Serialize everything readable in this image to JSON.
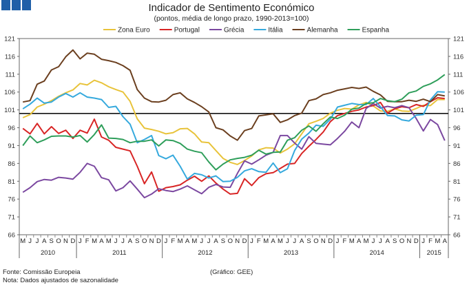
{
  "header_colors": {
    "box": "#1f5fa8"
  },
  "chart_data": {
    "type": "line",
    "title": "Indicador de Sentimento Económico",
    "subtitle": "(pontos, média de longo prazo, 1990-2013=100)",
    "ylim": [
      66,
      121
    ],
    "yticks": [
      66,
      71,
      76,
      81,
      86,
      91,
      96,
      101,
      106,
      111,
      116,
      121
    ],
    "reference_line": 100,
    "month_labels": [
      "M",
      "J",
      "J",
      "A",
      "S",
      "O",
      "N",
      "D",
      "J",
      "F",
      "M",
      "A",
      "M",
      "J",
      "J",
      "A",
      "S",
      "O",
      "N",
      "D",
      "J",
      "F",
      "M",
      "A",
      "M",
      "J",
      "J",
      "A",
      "S",
      "O",
      "N",
      "D",
      "J",
      "F",
      "M",
      "A",
      "M",
      "J",
      "J",
      "A",
      "S",
      "O",
      "N",
      "D",
      "J",
      "F",
      "M",
      "A",
      "M",
      "J",
      "J",
      "A",
      "S",
      "O",
      "N",
      "D",
      "J",
      "F",
      "M",
      "A"
    ],
    "years": [
      {
        "label": "2010",
        "start": 0,
        "end": 8
      },
      {
        "label": "2011",
        "start": 8,
        "end": 20
      },
      {
        "label": "2012",
        "start": 20,
        "end": 32
      },
      {
        "label": "2013",
        "start": 32,
        "end": 44
      },
      {
        "label": "2014",
        "start": 44,
        "end": 56
      },
      {
        "label": "2015",
        "start": 56,
        "end": 60
      }
    ],
    "series": [
      {
        "name": "Zona Euro",
        "color": "#e8c33a",
        "values": [
          98.8,
          99.7,
          101.8,
          102.6,
          103.6,
          104.8,
          105.8,
          106.6,
          108.4,
          108.0,
          109.3,
          108.6,
          107.5,
          106.7,
          106.0,
          103.4,
          98.5,
          95.9,
          95.5,
          95.0,
          94.3,
          94.6,
          95.7,
          95.8,
          94.3,
          92.0,
          91.8,
          89.6,
          87.4,
          86.3,
          85.7,
          86.8,
          88.1,
          89.8,
          90.4,
          90.3,
          88.9,
          90.0,
          91.5,
          94.3,
          97.1,
          97.8,
          98.6,
          100.1,
          100.9,
          101.4,
          101.2,
          102.4,
          103.1,
          102.1,
          100.7,
          100.6,
          101.3,
          100.7,
          100.6,
          101.4,
          102.3,
          102.2,
          103.9,
          103.9
        ]
      },
      {
        "name": "Portugal",
        "color": "#d82525",
        "values": [
          95.8,
          94.3,
          97.2,
          94.3,
          96.3,
          94.4,
          95.3,
          93.0,
          95.3,
          94.5,
          98.4,
          93.4,
          92.5,
          90.5,
          90.0,
          89.5,
          85.2,
          80.3,
          83.6,
          78.2,
          79.2,
          79.5,
          80.0,
          81.3,
          82.4,
          81.0,
          82.5,
          80.5,
          78.8,
          77.4,
          77.6,
          81.7,
          79.8,
          82.0,
          83.1,
          83.4,
          84.6,
          85.8,
          86.0,
          88.8,
          90.8,
          92.7,
          94.8,
          97.7,
          99.4,
          100.0,
          100.6,
          101.0,
          101.8,
          102.2,
          103.1,
          100.1,
          101.3,
          101.9,
          101.6,
          102.5,
          102.0,
          103.3,
          104.4,
          104.2
        ]
      },
      {
        "name": "Grécia",
        "color": "#7b48a0",
        "values": [
          77.9,
          79.2,
          80.9,
          81.5,
          81.3,
          82.1,
          81.9,
          81.6,
          83.5,
          86.0,
          85.2,
          82.0,
          81.4,
          78.3,
          79.2,
          81.1,
          78.8,
          76.4,
          77.4,
          78.9,
          78.4,
          78.1,
          78.8,
          79.7,
          78.6,
          77.5,
          79.3,
          80.1,
          79.4,
          79.3,
          83.2,
          86.7,
          85.8,
          87.0,
          88.3,
          89.1,
          93.8,
          93.8,
          91.7,
          90.0,
          93.5,
          91.6,
          91.4,
          91.2,
          93.0,
          95.0,
          97.6,
          96.0,
          101.4,
          102.8,
          101.5,
          102.0,
          101.6,
          102.2,
          101.6,
          98.6,
          95.1,
          98.3,
          96.9,
          92.4
        ]
      },
      {
        "name": "Itália",
        "color": "#35a9dd",
        "values": [
          101.3,
          102.6,
          104.3,
          102.9,
          103.2,
          104.6,
          105.6,
          104.6,
          105.8,
          104.6,
          104.3,
          103.9,
          101.7,
          102.0,
          99.1,
          97.0,
          91.8,
          92.7,
          93.8,
          88.2,
          87.3,
          88.3,
          85.2,
          81.6,
          83.2,
          82.8,
          81.9,
          82.5,
          80.9,
          81.0,
          82.1,
          83.9,
          84.5,
          83.7,
          83.5,
          86.1,
          83.4,
          84.5,
          89.6,
          92.8,
          94.5,
          96.7,
          96.4,
          98.4,
          101.8,
          102.3,
          102.8,
          102.5,
          102.5,
          104.2,
          101.9,
          99.4,
          99.3,
          98.2,
          97.9,
          99.5,
          99.7,
          103.8,
          106.1,
          106.0
        ]
      },
      {
        "name": "Alemanha",
        "color": "#6b3f1f",
        "values": [
          103.2,
          103.6,
          108.2,
          109.1,
          112.2,
          113.1,
          115.9,
          117.8,
          115.3,
          116.9,
          116.6,
          115.2,
          114.8,
          114.3,
          113.4,
          112.1,
          106.7,
          104.3,
          103.3,
          103.2,
          103.7,
          105.3,
          105.8,
          104.1,
          103.1,
          101.9,
          100.4,
          96.0,
          95.4,
          93.7,
          92.5,
          95.2,
          95.8,
          99.3,
          99.6,
          99.9,
          97.5,
          98.2,
          99.4,
          100.1,
          103.6,
          104.1,
          105.3,
          105.8,
          106.5,
          106.9,
          107.3,
          107.0,
          107.4,
          106.2,
          105.2,
          103.4,
          103.3,
          103.3,
          103.7,
          103.4,
          104.0,
          103.3,
          105.3,
          104.9
        ]
      },
      {
        "name": "Espanha",
        "color": "#2e9e5a",
        "values": [
          91.0,
          93.7,
          91.8,
          92.6,
          93.6,
          93.7,
          93.7,
          93.4,
          93.8,
          92.0,
          94.1,
          96.8,
          93.1,
          93.0,
          92.7,
          91.8,
          92.2,
          92.2,
          92.6,
          90.9,
          92.6,
          92.4,
          91.6,
          90.0,
          89.4,
          89.0,
          86.4,
          84.2,
          85.8,
          87.0,
          87.4,
          87.7,
          88.3,
          89.7,
          88.6,
          89.1,
          89.2,
          92.5,
          93.2,
          95.3,
          96.5,
          95.0,
          97.1,
          99.0,
          98.6,
          99.5,
          101.2,
          101.5,
          102.8,
          103.0,
          104.2,
          103.6,
          103.3,
          104.0,
          105.8,
          106.3,
          107.6,
          108.3,
          109.4,
          110.9
        ]
      }
    ]
  },
  "footer": {
    "source": "Fonte: Comissão Europeia",
    "note": "Nota: Dados ajustados de sazonalidade",
    "credit": "(Gráfico: GEE)"
  }
}
